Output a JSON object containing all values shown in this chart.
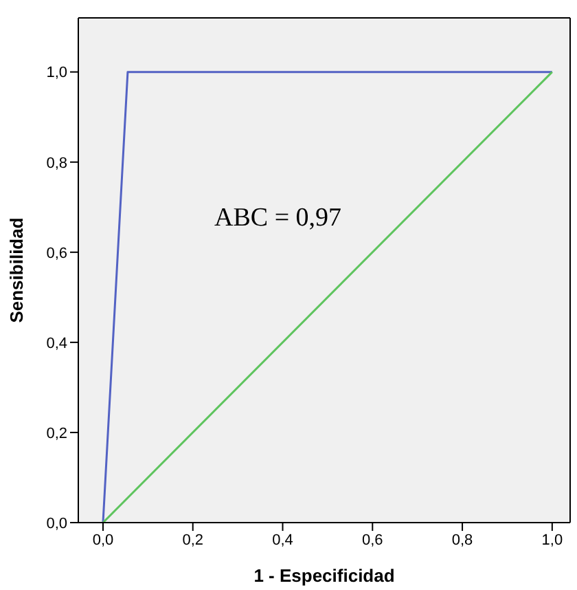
{
  "chart_data": {
    "type": "line",
    "xlabel": "1 - Especificidad",
    "ylabel": "Sensibilidad",
    "annotations": [
      "ABC = 0,97"
    ],
    "series": [
      {
        "color": "#5362c4",
        "x": [
          0,
          0.055,
          1
        ],
        "values": [
          0,
          1,
          1
        ]
      },
      {
        "color": "#5ec45e",
        "x": [
          0,
          1
        ],
        "values": [
          0,
          1
        ]
      }
    ],
    "xlim": [
      -0.055,
      1.04
    ],
    "ylim": [
      0,
      1.12
    ],
    "xticks": [
      {
        "value": 0,
        "label": "0,0"
      },
      {
        "value": 0.2,
        "label": "0,2"
      },
      {
        "value": 0.4,
        "label": "0,4"
      },
      {
        "value": 0.6,
        "label": "0,6"
      },
      {
        "value": 0.8,
        "label": "0,8"
      },
      {
        "value": 1,
        "label": "1,0"
      }
    ],
    "yticks": [
      {
        "value": 0,
        "label": "0,0"
      },
      {
        "value": 0.2,
        "label": "0,2"
      },
      {
        "value": 0.4,
        "label": "0,4"
      },
      {
        "value": 0.6,
        "label": "0,6"
      },
      {
        "value": 0.8,
        "label": "0,8"
      },
      {
        "value": 1,
        "label": "1,0"
      }
    ],
    "grid": false,
    "legend": false,
    "marker": "none",
    "line_style": "solid"
  }
}
